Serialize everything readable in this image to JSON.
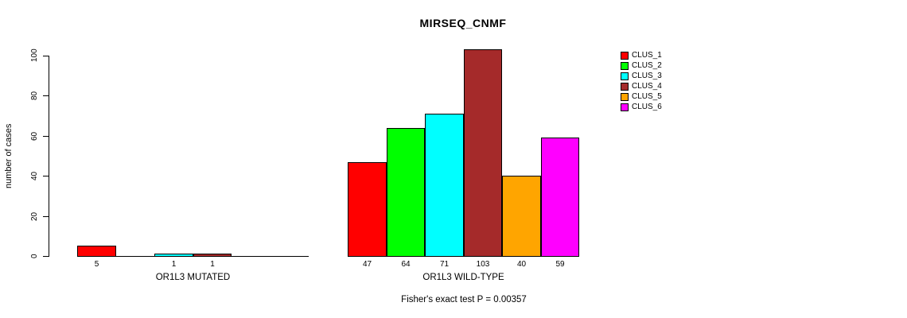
{
  "chart_data": {
    "type": "bar",
    "title": "MIRSEQ_CNMF",
    "ylabel": "number of cases",
    "xlabel": "",
    "ylim": [
      0,
      100
    ],
    "yticks": [
      0,
      20,
      40,
      60,
      80,
      100
    ],
    "grid": false,
    "legend_position": "right-outside",
    "categories": [
      "OR1L3 MUTATED",
      "OR1L3 WILD-TYPE"
    ],
    "series": [
      {
        "name": "CLUS_1",
        "color": "#FF0000",
        "values": [
          5,
          47
        ]
      },
      {
        "name": "CLUS_2",
        "color": "#00FF00",
        "values": [
          0,
          64
        ]
      },
      {
        "name": "CLUS_3",
        "color": "#00FFFF",
        "values": [
          1,
          71
        ]
      },
      {
        "name": "CLUS_4",
        "color": "#A52A2A",
        "values": [
          1,
          103
        ]
      },
      {
        "name": "CLUS_5",
        "color": "#FFA500",
        "values": [
          0,
          40
        ]
      },
      {
        "name": "CLUS_6",
        "color": "#FF00FF",
        "values": [
          0,
          59
        ]
      }
    ],
    "bar_labels_note": "each nonzero bar is labeled with its value below the axis",
    "footer": "Fisher's exact test P = 0.00357"
  }
}
